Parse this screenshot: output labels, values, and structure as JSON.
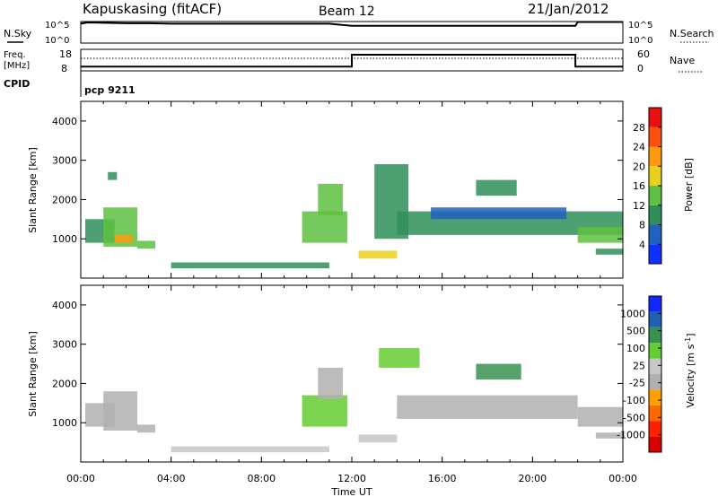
{
  "header": {
    "station": "Kapuskasing (fitACF)",
    "beam": "Beam 12",
    "date": "21/Jan/2012"
  },
  "noise_panel": {
    "left_label": "N.Sky",
    "right_label": "N.Search",
    "left_ticks": [
      "10^5",
      "10^0"
    ],
    "right_ticks": [
      "10^5",
      "10^0"
    ]
  },
  "freq_panel": {
    "left_label": "Freq.",
    "left_unit": "[MHz]",
    "right_label": "Nave",
    "left_ticks": [
      "18",
      "8"
    ],
    "right_ticks": [
      "60",
      "0"
    ]
  },
  "cpid": {
    "label": "CPID",
    "value": "pcp 9211"
  },
  "chart_data": [
    {
      "type": "line",
      "title": "Noise (N.Sky / N.Search)",
      "x_unit": "hours UT",
      "xlim": [
        0,
        24
      ],
      "series": [
        {
          "name": "N.Sky",
          "x": [
            0,
            0.3,
            1,
            2,
            3,
            4,
            5,
            6,
            7,
            8,
            9,
            10,
            11,
            12,
            13,
            14,
            15,
            16,
            17,
            18,
            19,
            20,
            21,
            21.9,
            22,
            23,
            24
          ],
          "values": [
            4.5,
            4.8,
            4.7,
            4.6,
            4.6,
            4.5,
            4.5,
            4.5,
            4.5,
            4.5,
            4.5,
            4.5,
            4.5,
            4.0,
            4.0,
            4.0,
            4.0,
            4.0,
            4.0,
            4.0,
            4.0,
            4.0,
            4.0,
            4.0,
            4.9,
            4.9,
            4.9
          ]
        }
      ]
    },
    {
      "type": "line",
      "title": "Frequency and Nave",
      "x_unit": "hours UT",
      "xlim": [
        0,
        24
      ],
      "series": [
        {
          "name": "Freq. [MHz]",
          "x": [
            0,
            12,
            12,
            21.9,
            21.9,
            24
          ],
          "values": [
            10,
            10,
            15.5,
            15.5,
            10,
            10
          ]
        },
        {
          "name": "Nave",
          "x": [
            0,
            24
          ],
          "values": [
            35,
            35
          ]
        }
      ]
    },
    {
      "type": "heatmap",
      "title": "Power",
      "xlabel": "Time UT",
      "ylabel": "Slant Range [km]",
      "colorbar_label": "Power [dB]",
      "xlim": [
        0,
        24
      ],
      "ylim": [
        0,
        4500
      ],
      "xticks": [
        "00:00",
        "04:00",
        "08:00",
        "12:00",
        "16:00",
        "20:00",
        "00:00"
      ],
      "yticks": [
        "1000",
        "2000",
        "3000",
        "4000"
      ],
      "colorbar_ticks": [
        "4",
        "8",
        "12",
        "16",
        "20",
        "24",
        "28"
      ],
      "colorbar_range": [
        0,
        32
      ],
      "regions": [
        {
          "t0": 0.2,
          "t1": 1.5,
          "r0": 900,
          "r1": 1500,
          "value": 10
        },
        {
          "t0": 1.0,
          "t1": 2.5,
          "r0": 800,
          "r1": 1800,
          "value": 14
        },
        {
          "t0": 1.5,
          "t1": 2.3,
          "r0": 900,
          "r1": 1100,
          "value": 22
        },
        {
          "t0": 2.5,
          "t1": 3.3,
          "r0": 750,
          "r1": 950,
          "value": 12
        },
        {
          "t0": 1.2,
          "t1": 1.6,
          "r0": 2500,
          "r1": 2700,
          "value": 8
        },
        {
          "t0": 4.0,
          "t1": 11.0,
          "r0": 250,
          "r1": 400,
          "value": 10
        },
        {
          "t0": 9.8,
          "t1": 11.8,
          "r0": 900,
          "r1": 1700,
          "value": 14
        },
        {
          "t0": 10.5,
          "t1": 11.6,
          "r0": 1600,
          "r1": 2400,
          "value": 12
        },
        {
          "t0": 12.3,
          "t1": 14.0,
          "r0": 500,
          "r1": 700,
          "value": 18
        },
        {
          "t0": 13.0,
          "t1": 14.5,
          "r0": 1000,
          "r1": 2900,
          "value": 8
        },
        {
          "t0": 14.0,
          "t1": 24.0,
          "r0": 1100,
          "r1": 1700,
          "value": 8
        },
        {
          "t0": 15.5,
          "t1": 21.5,
          "r0": 1500,
          "r1": 1800,
          "value": 6
        },
        {
          "t0": 17.5,
          "t1": 19.3,
          "r0": 2100,
          "r1": 2500,
          "value": 10
        },
        {
          "t0": 22.0,
          "t1": 24.0,
          "r0": 900,
          "r1": 1300,
          "value": 14
        },
        {
          "t0": 22.8,
          "t1": 24.0,
          "r0": 600,
          "r1": 750,
          "value": 10
        }
      ]
    },
    {
      "type": "heatmap",
      "title": "Velocity",
      "xlabel": "Time UT",
      "ylabel": "Slant Range [km]",
      "colorbar_label": "Velocity [m s^-1]",
      "xlim": [
        0,
        24
      ],
      "ylim": [
        0,
        4500
      ],
      "xticks": [
        "00:00",
        "04:00",
        "08:00",
        "12:00",
        "16:00",
        "20:00",
        "00:00"
      ],
      "yticks": [
        "1000",
        "2000",
        "3000",
        "4000"
      ],
      "colorbar_ticks": [
        "1000",
        "500",
        "100",
        "25",
        "-25",
        "-100",
        "-500",
        "-1000"
      ],
      "colorbar_range": [
        -1200,
        1200
      ],
      "regions": [
        {
          "t0": 0.2,
          "t1": 1.5,
          "r0": 900,
          "r1": 1500,
          "value": 0
        },
        {
          "t0": 1.0,
          "t1": 2.5,
          "r0": 800,
          "r1": 1800,
          "value": 60
        },
        {
          "t0": 2.5,
          "t1": 3.3,
          "r0": 750,
          "r1": 950,
          "value": 20
        },
        {
          "t0": 4.0,
          "t1": 11.0,
          "r0": 250,
          "r1": 400,
          "value": -200
        },
        {
          "t0": 9.8,
          "t1": 11.8,
          "r0": 900,
          "r1": 1700,
          "value": -300
        },
        {
          "t0": 10.5,
          "t1": 11.6,
          "r0": 1600,
          "r1": 2400,
          "value": 0
        },
        {
          "t0": 12.3,
          "t1": 14.0,
          "r0": 500,
          "r1": 700,
          "value": -200
        },
        {
          "t0": 13.2,
          "t1": 15.0,
          "r0": 2400,
          "r1": 2900,
          "value": -400
        },
        {
          "t0": 14.0,
          "t1": 22.0,
          "r0": 1100,
          "r1": 1700,
          "value": 0
        },
        {
          "t0": 17.5,
          "t1": 19.5,
          "r0": 2100,
          "r1": 2500,
          "value": -600
        },
        {
          "t0": 22.0,
          "t1": 24.0,
          "r0": 900,
          "r1": 1400,
          "value": 0
        },
        {
          "t0": 22.8,
          "t1": 24.0,
          "r0": 600,
          "r1": 750,
          "value": 70
        }
      ]
    }
  ],
  "colorbars": {
    "power": {
      "colors": [
        "#1030ff",
        "#2060c0",
        "#2f8f5a",
        "#5ec040",
        "#e8d020",
        "#ff9a10",
        "#ff5010",
        "#e81010"
      ]
    },
    "velocity": {
      "colors": [
        "#1028ff",
        "#2060b0",
        "#3a9050",
        "#66cc33",
        "#c8c8c8",
        "#b0b0b0",
        "#ffa000",
        "#ff6a00",
        "#ff2000",
        "#d80000"
      ]
    }
  }
}
